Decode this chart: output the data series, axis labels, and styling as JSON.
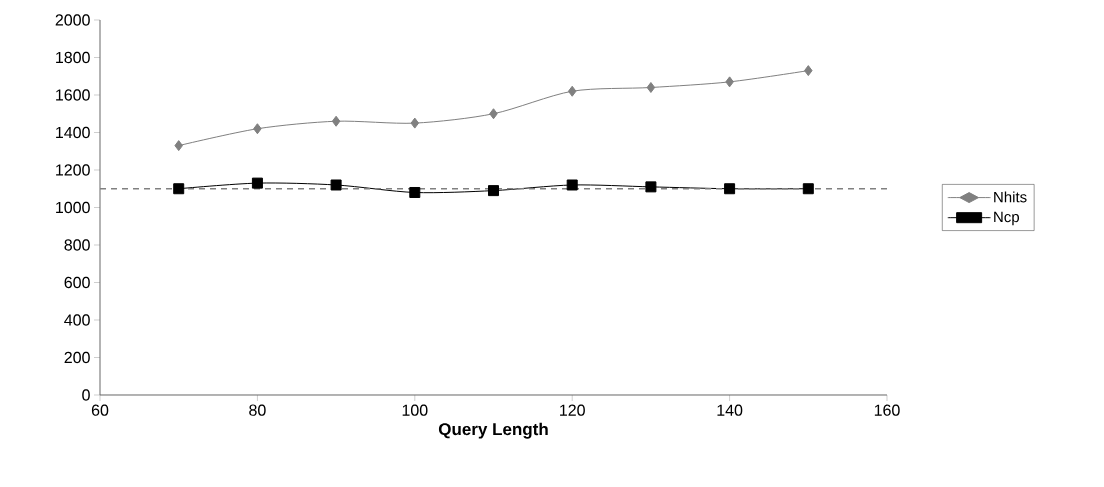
{
  "chart_data": {
    "type": "line",
    "xlabel": "Query Length",
    "x": [
      70,
      80,
      90,
      100,
      110,
      120,
      130,
      140,
      150
    ],
    "series": [
      {
        "name": "Nhits",
        "color": "#808080",
        "marker": "diamond",
        "values": [
          1330,
          1420,
          1460,
          1450,
          1500,
          1620,
          1640,
          1670,
          1730
        ]
      },
      {
        "name": "Ncp",
        "color": "#000000",
        "marker": "square",
        "values": [
          1100,
          1130,
          1120,
          1080,
          1090,
          1120,
          1110,
          1100,
          1100
        ]
      }
    ],
    "xlim": [
      60,
      160
    ],
    "xticks": [
      60,
      80,
      100,
      120,
      140,
      160
    ],
    "ylim": [
      0,
      2000
    ],
    "yticks": [
      0,
      200,
      400,
      600,
      800,
      1000,
      1200,
      1400,
      1600,
      1800,
      2000
    ],
    "ref_lines": [
      {
        "axis": "y",
        "value": 1100,
        "color": "#808080",
        "line_style": "dashed"
      }
    ],
    "legend": "right",
    "grid": false
  }
}
